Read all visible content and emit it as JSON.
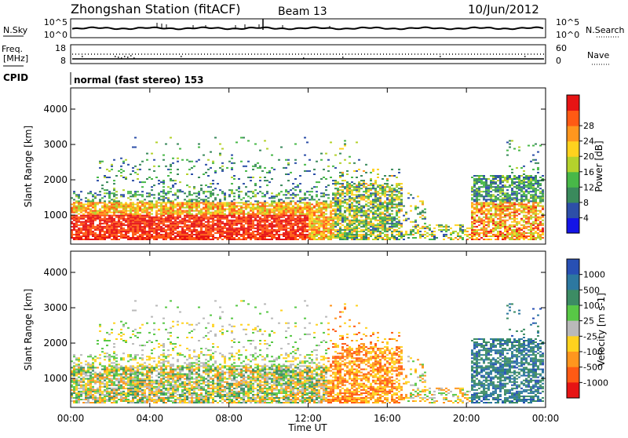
{
  "header": {
    "title": "Zhongshan Station (fitACF)",
    "beam": "Beam 13",
    "date": "10/Jun/2012"
  },
  "aux_panels": {
    "nsky": {
      "label": "N.Sky",
      "right_label": "N.Search",
      "top_tick": "10^5",
      "bottom_tick": "10^0",
      "right_top_tick": "10^5",
      "right_bottom_tick": "10^0"
    },
    "freq": {
      "label": "Freq.",
      "unit": "[MHz]",
      "right_label": "Nave",
      "top_tick": "18",
      "bottom_tick": "8",
      "right_top_tick": "60",
      "right_bottom_tick": "0"
    },
    "cpid": {
      "label": "CPID",
      "value": "normal (fast stereo) 153"
    }
  },
  "chart_data": [
    {
      "type": "heatmap",
      "name": "power",
      "ylabel": "Slant Range [km]",
      "yticks": [
        "1000",
        "2000",
        "3000",
        "4000"
      ],
      "ylim": [
        180,
        4600
      ],
      "colorbar": {
        "label": "Power [dB]",
        "ticks": [
          "4",
          "8",
          "12",
          "16",
          "20",
          "24",
          "28"
        ],
        "colors": [
          "#1414e6",
          "#2d4fa8",
          "#3a8a5c",
          "#48b848",
          "#b4d22c",
          "#ffd21e",
          "#ff961e",
          "#ff5a14",
          "#e61414"
        ]
      }
    },
    {
      "type": "heatmap",
      "name": "velocity",
      "ylabel": "Slant Range [km]",
      "yticks": [
        "1000",
        "2000",
        "3000",
        "4000"
      ],
      "ylim": [
        180,
        4600
      ],
      "colorbar": {
        "label": "Velocity [m s-1]",
        "ticks": [
          "1000",
          "500",
          "100",
          "25",
          "-25",
          "-100",
          "-500",
          "-1000"
        ],
        "colors": [
          "#2850b4",
          "#2d78a0",
          "#3c8c64",
          "#58c846",
          "#b9b9b9",
          "#ffd21e",
          "#ff961e",
          "#ff5a14",
          "#e61414"
        ]
      }
    }
  ],
  "time_axis": {
    "label": "Time UT",
    "ticks": [
      "00:00",
      "04:00",
      "08:00",
      "12:00",
      "16:00",
      "20:00",
      "00:00"
    ]
  }
}
